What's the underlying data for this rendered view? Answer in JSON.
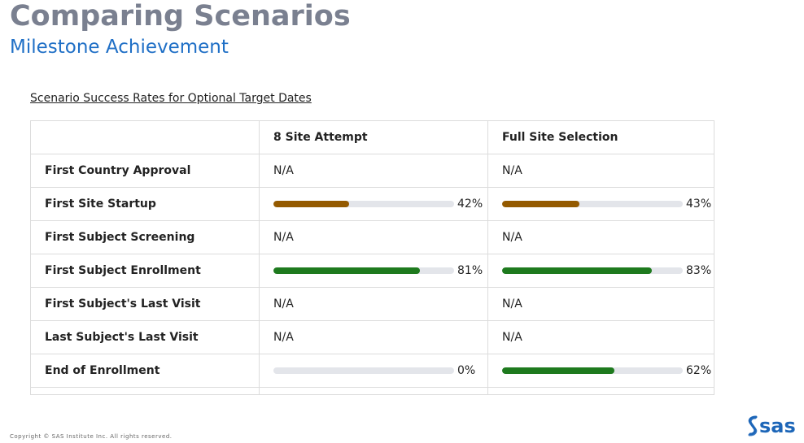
{
  "header": {
    "title": "Comparing Scenarios",
    "subtitle": "Milestone Achievement"
  },
  "table": {
    "caption": "Scenario Success Rates for Optional Target Dates",
    "columns": [
      "",
      "8 Site Attempt",
      "Full Site Selection"
    ],
    "rows": [
      {
        "label": "First Country Approval",
        "cells": [
          {
            "type": "text",
            "text": "N/A"
          },
          {
            "type": "text",
            "text": "N/A"
          }
        ]
      },
      {
        "label": "First Site Startup",
        "cells": [
          {
            "type": "bar",
            "value": 42,
            "text": "42%",
            "color": "#945a00"
          },
          {
            "type": "bar",
            "value": 43,
            "text": "43%",
            "color": "#945a00"
          }
        ]
      },
      {
        "label": "First Subject Screening",
        "cells": [
          {
            "type": "text",
            "text": "N/A"
          },
          {
            "type": "text",
            "text": "N/A"
          }
        ]
      },
      {
        "label": "First Subject Enrollment",
        "cells": [
          {
            "type": "bar",
            "value": 81,
            "text": "81%",
            "color": "#1e7a1e"
          },
          {
            "type": "bar",
            "value": 83,
            "text": "83%",
            "color": "#1e7a1e"
          }
        ]
      },
      {
        "label": "First Subject's Last Visit",
        "cells": [
          {
            "type": "text",
            "text": "N/A"
          },
          {
            "type": "text",
            "text": "N/A"
          }
        ]
      },
      {
        "label": "Last Subject's Last Visit",
        "cells": [
          {
            "type": "text",
            "text": "N/A"
          },
          {
            "type": "text",
            "text": "N/A"
          }
        ]
      },
      {
        "label": "End of Enrollment",
        "cells": [
          {
            "type": "bar",
            "value": 0,
            "text": "0%",
            "color": "#1e7a1e"
          },
          {
            "type": "bar",
            "value": 62,
            "text": "62%",
            "color": "#1e7a1e"
          }
        ]
      }
    ]
  },
  "footer": {
    "copyright": "Copyright © SAS Institute Inc. All rights reserved.",
    "logo_text": "sas",
    "logo_icon": "sas-logo-icon",
    "logo_color": "#1d66b8"
  },
  "colors": {
    "title": "#7a8090",
    "subtitle": "#1f6fc6",
    "track": "#e3e5ea"
  }
}
